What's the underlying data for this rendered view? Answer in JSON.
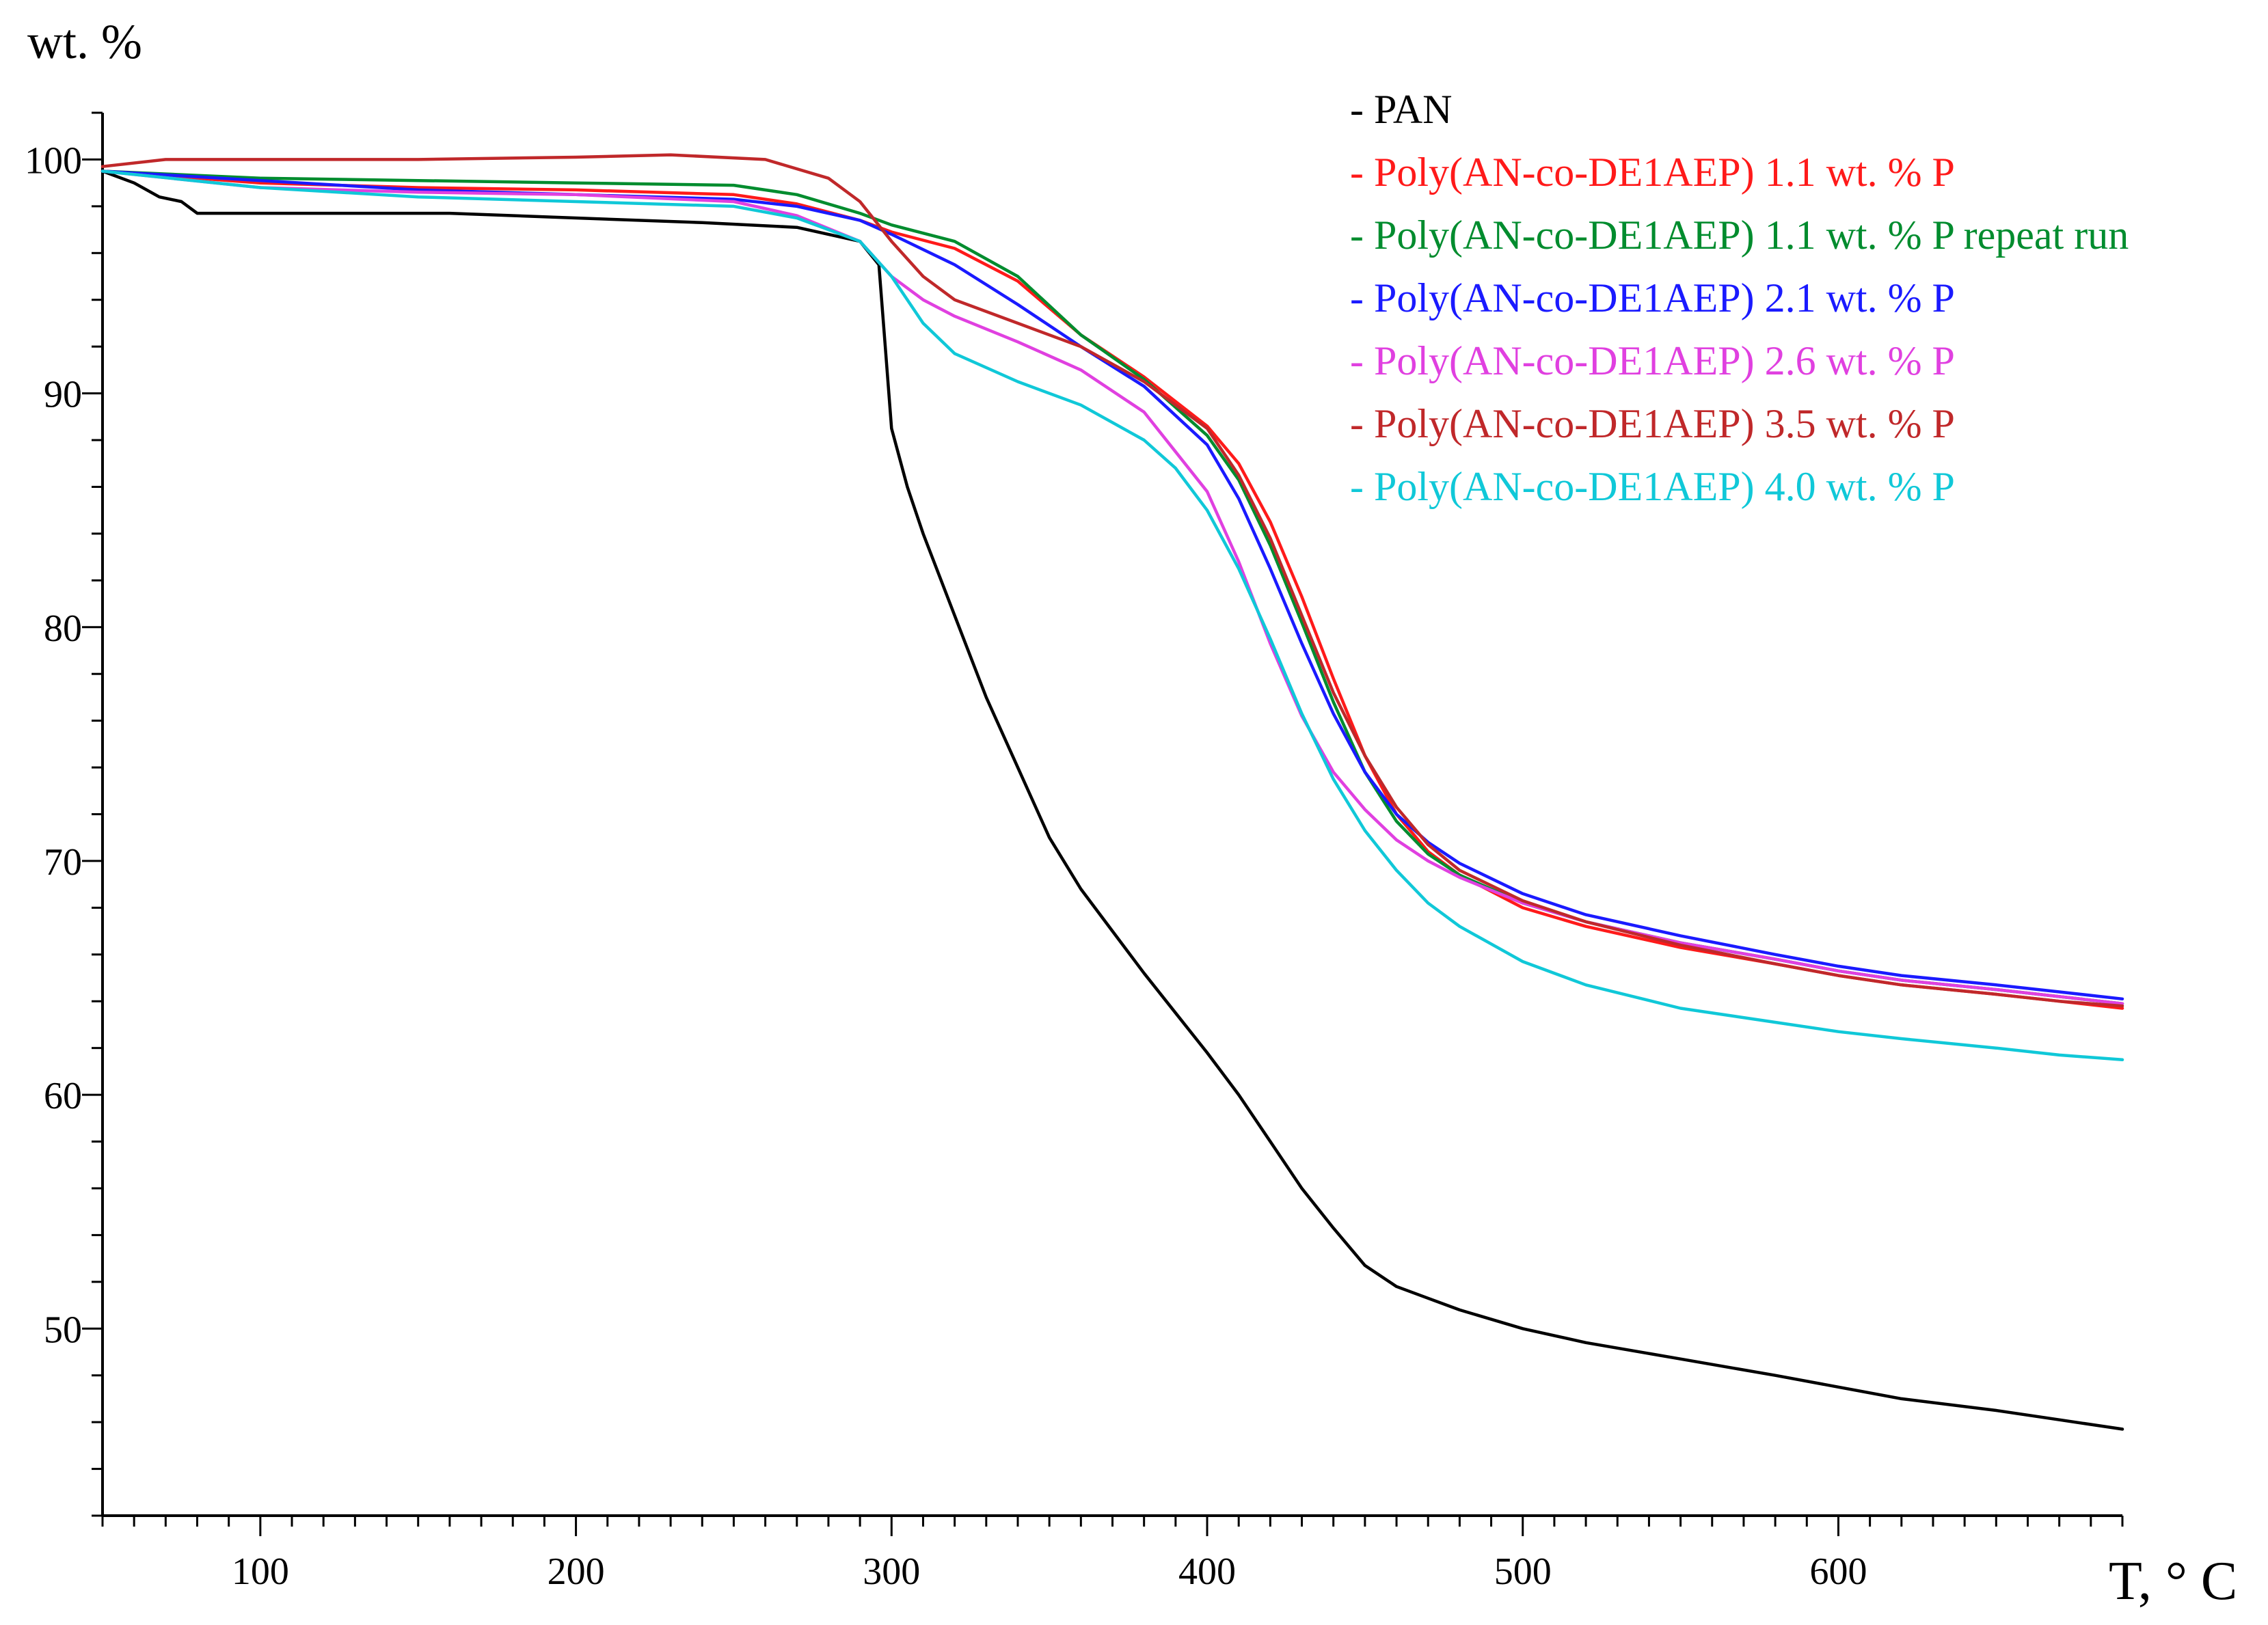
{
  "chart_data": {
    "type": "line",
    "title": "",
    "xlabel": "T, ° C",
    "ylabel": "wt. %",
    "xlim": [
      50,
      690
    ],
    "ylim": [
      42,
      102
    ],
    "x_ticks": [
      100,
      200,
      300,
      400,
      500,
      600
    ],
    "y_ticks": [
      50,
      60,
      70,
      80,
      90,
      100
    ],
    "grid": false,
    "legend_position": "top-right",
    "series": [
      {
        "name": "PAN",
        "legend_label": "- PAN",
        "color": "#000000",
        "x": [
          50,
          60,
          68,
          75,
          80,
          120,
          160,
          200,
          240,
          270,
          290,
          296,
          298,
          300,
          305,
          310,
          320,
          330,
          340,
          350,
          360,
          370,
          380,
          390,
          400,
          410,
          420,
          430,
          440,
          450,
          460,
          470,
          480,
          500,
          520,
          550,
          580,
          600,
          620,
          650,
          670,
          690
        ],
        "y": [
          99.5,
          99.0,
          98.4,
          98.2,
          97.7,
          97.7,
          97.7,
          97.5,
          97.3,
          97.1,
          96.5,
          95.5,
          92.0,
          88.5,
          86.0,
          84.0,
          80.5,
          77.0,
          74.0,
          71.0,
          68.8,
          67.0,
          65.2,
          63.5,
          61.8,
          60.0,
          58.0,
          56.0,
          54.3,
          52.7,
          51.8,
          51.3,
          50.8,
          50.0,
          49.4,
          48.7,
          48.0,
          47.5,
          47.0,
          46.5,
          46.1,
          45.7
        ]
      },
      {
        "name": "Poly(AN-co-DE1AEP) 1.1 wt. % P",
        "legend_label": "- Poly(AN-co-DE1AEP) 1.1 wt. % P",
        "color": "#ff1a1a",
        "x": [
          50,
          100,
          150,
          200,
          250,
          270,
          290,
          300,
          320,
          340,
          360,
          380,
          400,
          410,
          420,
          430,
          440,
          450,
          460,
          470,
          480,
          500,
          520,
          550,
          580,
          600,
          620,
          650,
          670,
          690
        ],
        "y": [
          99.5,
          99.0,
          98.8,
          98.7,
          98.5,
          98.1,
          97.4,
          96.9,
          96.2,
          94.8,
          92.5,
          90.7,
          88.6,
          87.0,
          84.5,
          81.3,
          77.8,
          74.5,
          72.0,
          70.4,
          69.4,
          68.0,
          67.2,
          66.3,
          65.6,
          65.1,
          64.7,
          64.3,
          64.0,
          63.7
        ]
      },
      {
        "name": "Poly(AN-co-DE1AEP) 1.1 wt. % P repeat run",
        "legend_label": "- Poly(AN-co-DE1AEP) 1.1 wt. % P repeat run",
        "color": "#008c2e",
        "x": [
          50,
          100,
          150,
          200,
          250,
          270,
          290,
          300,
          320,
          340,
          360,
          380,
          400,
          410,
          420,
          430,
          440,
          450,
          460,
          470,
          480,
          500,
          520,
          550,
          580,
          600,
          620,
          650,
          670,
          690
        ],
        "y": [
          99.5,
          99.2,
          99.1,
          99.0,
          98.9,
          98.5,
          97.7,
          97.2,
          96.5,
          95.0,
          92.5,
          90.6,
          88.2,
          86.3,
          83.5,
          80.2,
          76.8,
          73.8,
          71.7,
          70.3,
          69.4,
          68.2,
          67.4,
          66.5,
          65.8,
          65.3,
          64.9,
          64.5,
          64.2,
          63.9
        ]
      },
      {
        "name": "Poly(AN-co-DE1AEP) 2.1 wt. % P",
        "legend_label": "- Poly(AN-co-DE1AEP) 2.1 wt. % P",
        "color": "#1a1aff",
        "x": [
          50,
          100,
          150,
          200,
          250,
          270,
          290,
          300,
          320,
          340,
          360,
          380,
          400,
          410,
          420,
          430,
          440,
          450,
          460,
          470,
          480,
          500,
          520,
          550,
          580,
          600,
          620,
          650,
          670,
          690
        ],
        "y": [
          99.5,
          99.1,
          98.7,
          98.5,
          98.3,
          98.0,
          97.4,
          96.8,
          95.5,
          93.8,
          92.0,
          90.3,
          87.8,
          85.5,
          82.5,
          79.3,
          76.3,
          73.8,
          72.0,
          70.8,
          69.9,
          68.6,
          67.7,
          66.8,
          66.0,
          65.5,
          65.1,
          64.7,
          64.4,
          64.1
        ]
      },
      {
        "name": "Poly(AN-co-DE1AEP) 2.6 wt. % P",
        "legend_label": "- Poly(AN-co-DE1AEP) 2.6 wt. % P",
        "color": "#e040e0",
        "x": [
          50,
          100,
          150,
          200,
          250,
          270,
          290,
          300,
          310,
          320,
          340,
          360,
          380,
          400,
          410,
          420,
          430,
          440,
          450,
          460,
          470,
          480,
          500,
          520,
          550,
          580,
          600,
          620,
          650,
          670,
          690
        ],
        "y": [
          99.5,
          98.8,
          98.6,
          98.5,
          98.2,
          97.6,
          96.5,
          95.0,
          94.0,
          93.3,
          92.2,
          91.0,
          89.2,
          85.8,
          82.8,
          79.3,
          76.2,
          73.8,
          72.2,
          70.9,
          70.0,
          69.3,
          68.2,
          67.4,
          66.5,
          65.8,
          65.3,
          64.9,
          64.5,
          64.2,
          63.9
        ]
      },
      {
        "name": "Poly(AN-co-DE1AEP) 3.5 wt. % P",
        "legend_label": "- Poly(AN-co-DE1AEP) 3.5 wt. % P",
        "color": "#c0282a",
        "x": [
          50,
          70,
          100,
          150,
          200,
          230,
          260,
          280,
          290,
          300,
          310,
          320,
          340,
          360,
          380,
          400,
          410,
          420,
          430,
          440,
          450,
          460,
          470,
          480,
          500,
          520,
          550,
          580,
          600,
          620,
          650,
          670,
          690
        ],
        "y": [
          99.7,
          100.0,
          100.0,
          100.0,
          100.1,
          100.2,
          100.0,
          99.2,
          98.2,
          96.5,
          95.0,
          94.0,
          93.0,
          92.0,
          90.5,
          88.5,
          86.5,
          83.8,
          80.5,
          77.2,
          74.5,
          72.3,
          70.7,
          69.6,
          68.3,
          67.4,
          66.4,
          65.6,
          65.1,
          64.7,
          64.3,
          64.0,
          63.8
        ]
      },
      {
        "name": "Poly(AN-co-DE1AEP) 4.0 wt. % P",
        "legend_label": "- Poly(AN-co-DE1AEP) 4.0 wt. % P",
        "color": "#10c8d8",
        "x": [
          50,
          100,
          150,
          200,
          250,
          270,
          290,
          300,
          310,
          320,
          340,
          360,
          380,
          390,
          400,
          410,
          420,
          430,
          440,
          450,
          460,
          470,
          480,
          500,
          520,
          550,
          580,
          600,
          620,
          650,
          670,
          690
        ],
        "y": [
          99.5,
          98.8,
          98.4,
          98.2,
          98.0,
          97.5,
          96.5,
          95.0,
          93.0,
          91.7,
          90.5,
          89.5,
          88.0,
          86.8,
          85.0,
          82.5,
          79.5,
          76.3,
          73.5,
          71.3,
          69.6,
          68.2,
          67.2,
          65.7,
          64.7,
          63.7,
          63.1,
          62.7,
          62.4,
          62.0,
          61.7,
          61.5
        ]
      }
    ]
  }
}
